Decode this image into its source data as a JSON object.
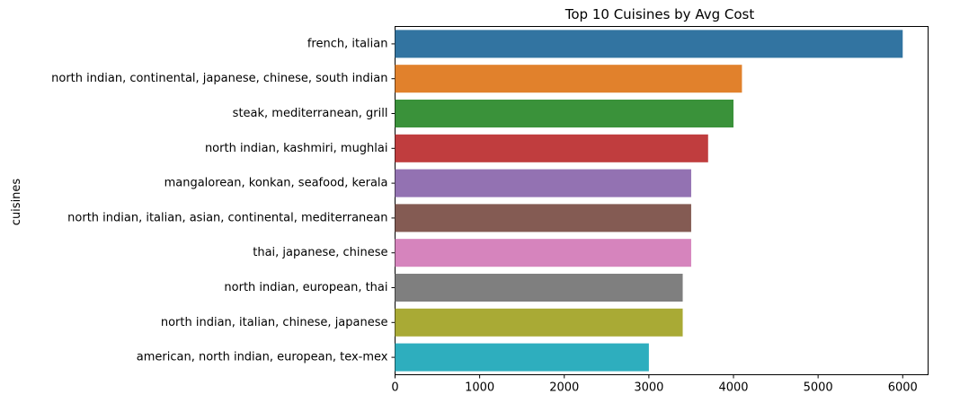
{
  "chart_data": {
    "type": "bar",
    "orientation": "horizontal",
    "title": "Top 10 Cuisines by Avg Cost",
    "xlabel": "",
    "ylabel": "cuisines",
    "xlim": [
      0,
      6300
    ],
    "xticks": [
      0,
      1000,
      2000,
      3000,
      4000,
      5000,
      6000
    ],
    "grid": false,
    "categories": [
      "french, italian",
      "north indian, continental, japanese, chinese, south indian",
      "steak, mediterranean, grill",
      "north indian, kashmiri, mughlai",
      "mangalorean, konkan, seafood, kerala",
      "north indian, italian, asian, continental, mediterranean",
      "thai, japanese, chinese",
      "north indian, european, thai",
      "north indian, italian, chinese, japanese",
      "american, north indian, european, tex-mex"
    ],
    "values": [
      6000,
      4100,
      4000,
      3700,
      3500,
      3500,
      3500,
      3400,
      3400,
      3000
    ],
    "colors": [
      "#3274a1",
      "#e1812c",
      "#3a923a",
      "#c03d3e",
      "#9372b2",
      "#845b53",
      "#d684bd",
      "#7f7f7f",
      "#a9aa35",
      "#2eaebe"
    ]
  }
}
